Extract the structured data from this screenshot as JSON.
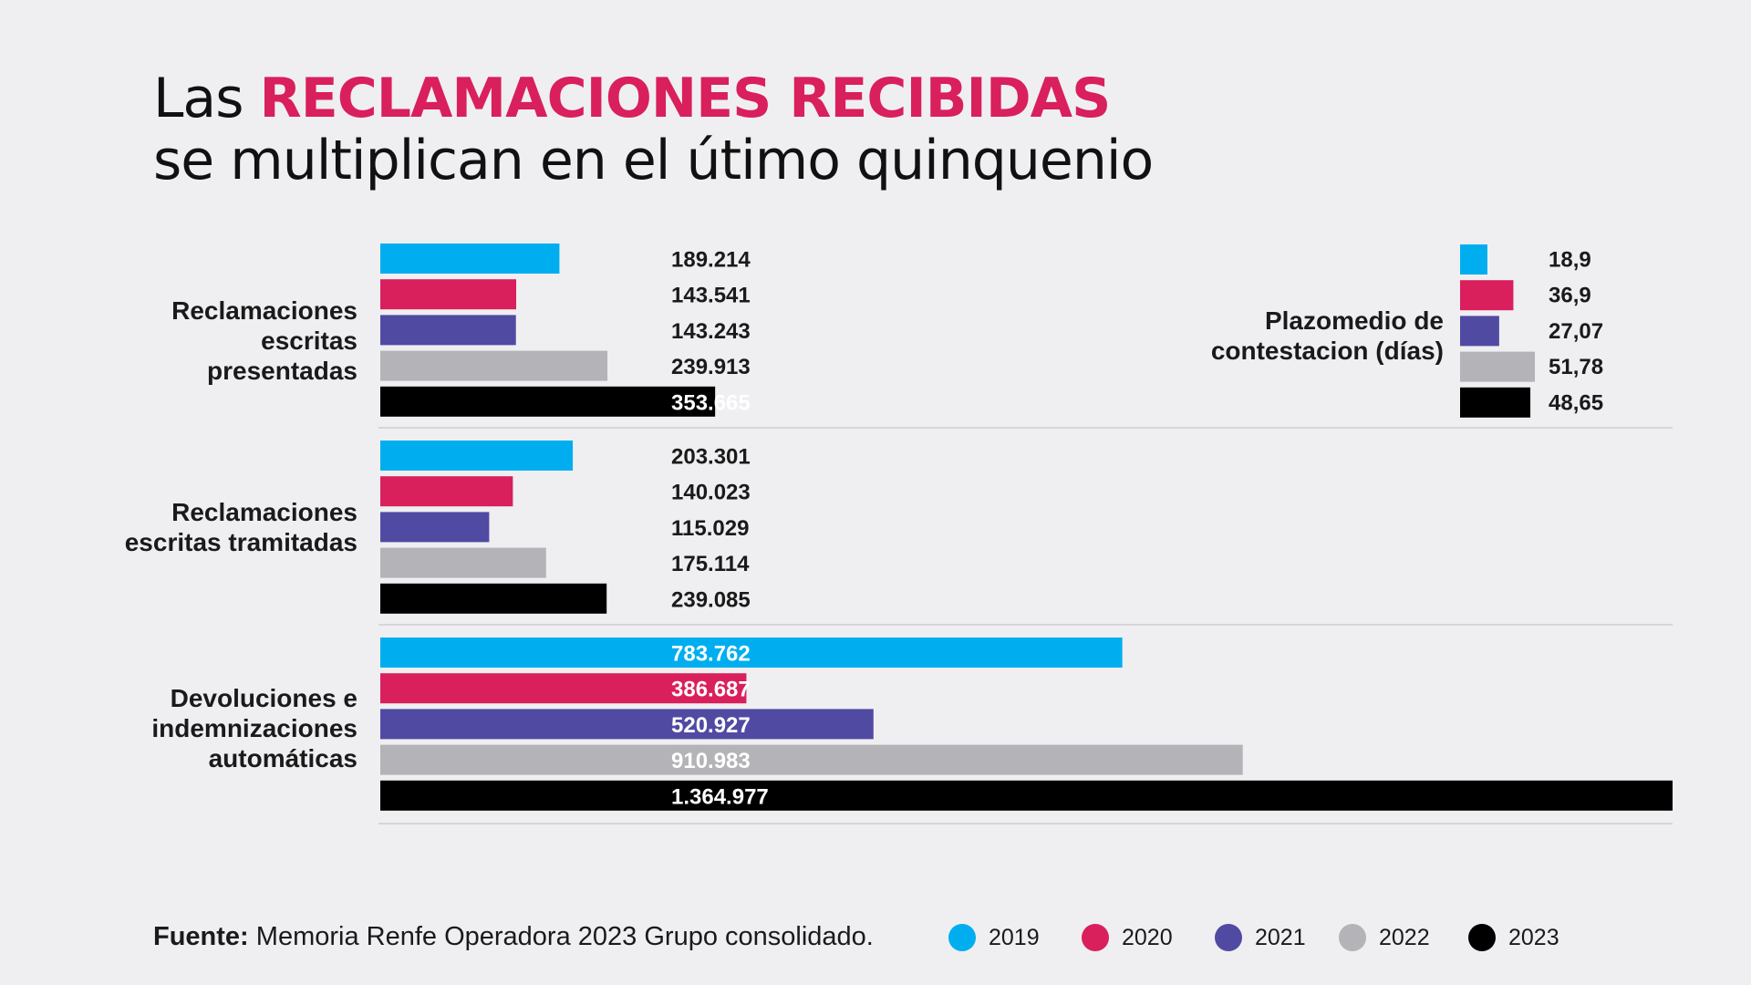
{
  "title": {
    "prefix": "Las ",
    "highlight": "RECLAMACIONES RECIBIDAS",
    "line2": "se multiplican en el útimo quinquenio"
  },
  "colors": {
    "2019": "#00aeef",
    "2020": "#d91f5c",
    "2021": "#514aa3",
    "2022": "#b3b3b8",
    "2023": "#000000",
    "accent": "#d91f5c"
  },
  "source": {
    "label": "Fuente:",
    "text": "Memoria Renfe Operadora 2023 Grupo consolidado."
  },
  "chart_data": [
    {
      "type": "bar",
      "orientation": "horizontal",
      "categories": [
        "Reclamaciones escritas presentadas",
        "Reclamaciones escritas tramitadas",
        "Devoluciones e indemnizaciones automáticas"
      ],
      "category_lines": [
        [
          "Reclamaciones",
          "escritas",
          "presentadas"
        ],
        [
          "Reclamaciones",
          "escritas tramitadas"
        ],
        [
          "Devoluciones e",
          "indemnizaciones",
          "automáticas"
        ]
      ],
      "series": [
        {
          "name": "2019",
          "values": [
            189214,
            203301,
            783762
          ],
          "labels": [
            "189.214",
            "203.301",
            "783.762"
          ]
        },
        {
          "name": "2020",
          "values": [
            143541,
            140023,
            386687
          ],
          "labels": [
            "143.541",
            "140.023",
            "386.687"
          ]
        },
        {
          "name": "2021",
          "values": [
            143243,
            115029,
            520927
          ],
          "labels": [
            "143.243",
            "115.029",
            "520.927"
          ]
        },
        {
          "name": "2022",
          "values": [
            239913,
            175114,
            910983
          ],
          "labels": [
            "239.913",
            "175.114",
            "910.983"
          ]
        },
        {
          "name": "2023",
          "values": [
            353665,
            239085,
            1364977
          ],
          "labels": [
            "353.665",
            "239.085",
            "1.364.977"
          ]
        }
      ],
      "xlim": [
        0,
        1364977
      ],
      "grid": false,
      "legend": "bottom"
    },
    {
      "type": "bar",
      "orientation": "horizontal",
      "title": "Plazomedio de contestacion (días)",
      "title_lines": [
        "Plazomedio de",
        "contestacion (días)"
      ],
      "categories": [
        "2019",
        "2020",
        "2021",
        "2022",
        "2023"
      ],
      "values": [
        18.9,
        36.9,
        27.07,
        51.78,
        48.65
      ],
      "labels": [
        "18,9",
        "36,9",
        "27,07",
        "51,78",
        "48,65"
      ],
      "xlim": [
        0,
        51.78
      ]
    }
  ]
}
